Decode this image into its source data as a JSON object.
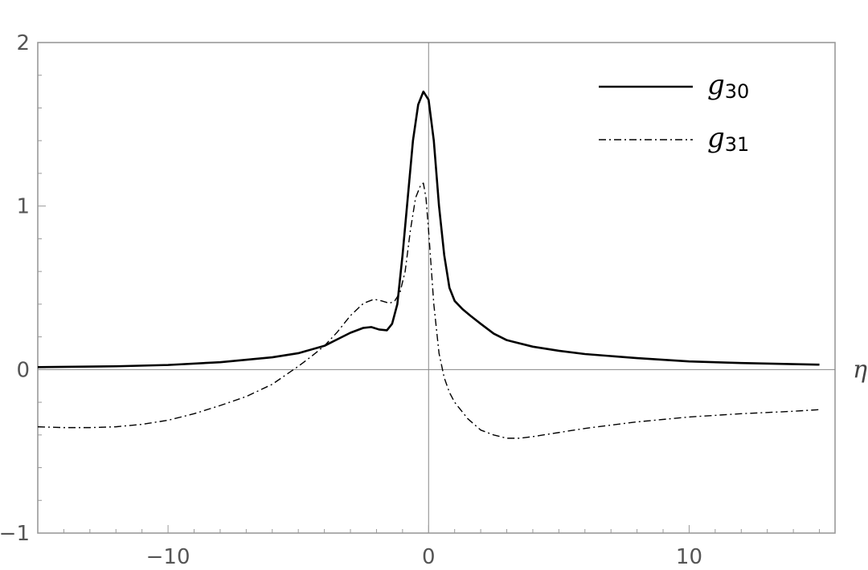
{
  "chart_data": {
    "type": "line",
    "xlabel": "η",
    "ylabel": "",
    "xlim": [
      -15,
      15.6
    ],
    "ylim": [
      -1,
      2
    ],
    "xticks": [
      -10,
      0,
      10
    ],
    "yticks": [
      -1,
      0,
      1,
      2
    ],
    "xtick_labels": [
      "−10",
      "0",
      "10"
    ],
    "ytick_labels": [
      "−1",
      "0",
      "1",
      "2"
    ],
    "grid": false,
    "frame": true,
    "zero_axes": true,
    "legend_position": "top-right",
    "colors": {
      "frame": "#999999",
      "zero_axis": "#888888",
      "series": "#000000"
    },
    "series": [
      {
        "legend_main": "g",
        "legend_sub": "30",
        "style": "solid",
        "points": [
          [
            -15,
            0.015
          ],
          [
            -12,
            0.02
          ],
          [
            -10,
            0.028
          ],
          [
            -8,
            0.045
          ],
          [
            -6,
            0.075
          ],
          [
            -5,
            0.1
          ],
          [
            -4,
            0.145
          ],
          [
            -3.5,
            0.185
          ],
          [
            -3,
            0.225
          ],
          [
            -2.5,
            0.255
          ],
          [
            -2.2,
            0.26
          ],
          [
            -1.9,
            0.245
          ],
          [
            -1.6,
            0.24
          ],
          [
            -1.4,
            0.28
          ],
          [
            -1.2,
            0.4
          ],
          [
            -1.0,
            0.7
          ],
          [
            -0.8,
            1.05
          ],
          [
            -0.6,
            1.4
          ],
          [
            -0.4,
            1.62
          ],
          [
            -0.2,
            1.7
          ],
          [
            0.0,
            1.65
          ],
          [
            0.2,
            1.4
          ],
          [
            0.4,
            1.0
          ],
          [
            0.6,
            0.7
          ],
          [
            0.8,
            0.5
          ],
          [
            1.0,
            0.42
          ],
          [
            1.3,
            0.37
          ],
          [
            1.6,
            0.33
          ],
          [
            2.0,
            0.28
          ],
          [
            2.5,
            0.22
          ],
          [
            3.0,
            0.18
          ],
          [
            4.0,
            0.14
          ],
          [
            5.0,
            0.115
          ],
          [
            6.0,
            0.095
          ],
          [
            8.0,
            0.07
          ],
          [
            10.0,
            0.05
          ],
          [
            12.0,
            0.04
          ],
          [
            15.0,
            0.03
          ]
        ]
      },
      {
        "legend_main": "g",
        "legend_sub": "31",
        "style": "dash-dot",
        "points": [
          [
            -15,
            -0.35
          ],
          [
            -14,
            -0.355
          ],
          [
            -13,
            -0.355
          ],
          [
            -12,
            -0.35
          ],
          [
            -11,
            -0.335
          ],
          [
            -10,
            -0.31
          ],
          [
            -9,
            -0.27
          ],
          [
            -8,
            -0.22
          ],
          [
            -7,
            -0.165
          ],
          [
            -6,
            -0.09
          ],
          [
            -5,
            0.02
          ],
          [
            -4.5,
            0.08
          ],
          [
            -4,
            0.145
          ],
          [
            -3.5,
            0.23
          ],
          [
            -3,
            0.33
          ],
          [
            -2.5,
            0.405
          ],
          [
            -2.1,
            0.43
          ],
          [
            -1.8,
            0.42
          ],
          [
            -1.5,
            0.405
          ],
          [
            -1.3,
            0.42
          ],
          [
            -1.1,
            0.47
          ],
          [
            -0.9,
            0.6
          ],
          [
            -0.7,
            0.85
          ],
          [
            -0.5,
            1.05
          ],
          [
            -0.3,
            1.13
          ],
          [
            -0.2,
            1.14
          ],
          [
            -0.1,
            1.05
          ],
          [
            0.0,
            0.85
          ],
          [
            0.2,
            0.4
          ],
          [
            0.4,
            0.1
          ],
          [
            0.6,
            -0.05
          ],
          [
            0.8,
            -0.14
          ],
          [
            1.0,
            -0.2
          ],
          [
            1.5,
            -0.3
          ],
          [
            2.0,
            -0.37
          ],
          [
            2.5,
            -0.4
          ],
          [
            3.0,
            -0.42
          ],
          [
            3.5,
            -0.42
          ],
          [
            4.0,
            -0.41
          ],
          [
            5.0,
            -0.385
          ],
          [
            6.0,
            -0.36
          ],
          [
            8.0,
            -0.32
          ],
          [
            10.0,
            -0.29
          ],
          [
            12.0,
            -0.27
          ],
          [
            14.0,
            -0.255
          ],
          [
            15.0,
            -0.245
          ]
        ]
      }
    ]
  }
}
